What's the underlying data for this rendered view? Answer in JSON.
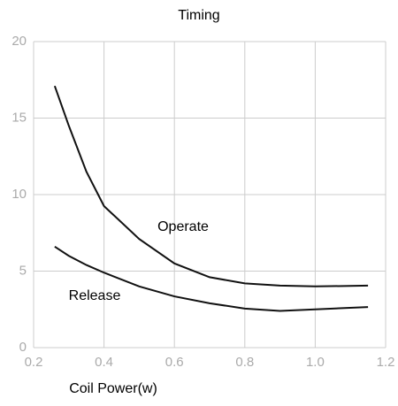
{
  "chart_data": {
    "type": "line",
    "title": "Timing",
    "x_label": "Coil Power(w)",
    "x": [
      0.26,
      0.3,
      0.35,
      0.4,
      0.5,
      0.6,
      0.7,
      0.8,
      0.9,
      1.0,
      1.15
    ],
    "series": [
      {
        "name": "Operate",
        "color": "#111",
        "values": [
          17.1,
          14.5,
          11.5,
          9.25,
          7.1,
          5.5,
          4.6,
          4.2,
          4.05,
          4.0,
          4.05
        ]
      },
      {
        "name": "Release",
        "color": "#111",
        "values": [
          6.6,
          6.0,
          5.4,
          4.9,
          4.0,
          3.35,
          2.9,
          2.55,
          2.4,
          2.5,
          2.65
        ]
      }
    ],
    "xlim": [
      0.2,
      1.2
    ],
    "ylim": [
      0,
      20
    ],
    "xticks": [
      0.2,
      0.4,
      0.6,
      0.8,
      {
        "value": 1,
        "label": "1.0"
      },
      1.2
    ],
    "yticks": [
      0,
      5,
      10,
      15,
      20
    ],
    "grid": true
  }
}
